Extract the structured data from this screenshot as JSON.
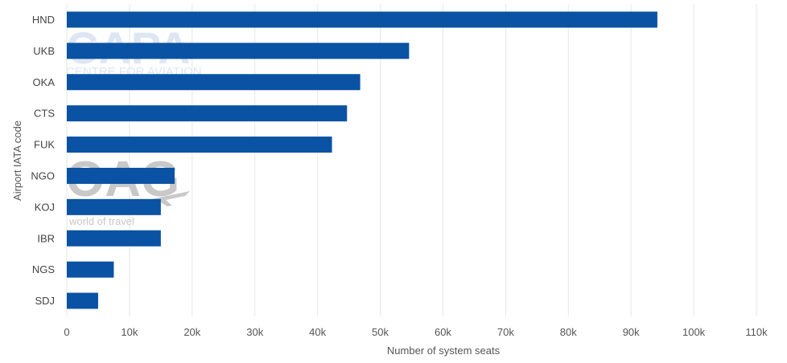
{
  "chart_data": {
    "type": "bar",
    "orientation": "horizontal",
    "categories": [
      "HND",
      "UKB",
      "OKA",
      "CTS",
      "FUK",
      "NGO",
      "KOJ",
      "IBR",
      "NGS",
      "SDJ"
    ],
    "values": [
      94200,
      54600,
      46800,
      44700,
      42300,
      17200,
      15000,
      15000,
      7500,
      5000
    ],
    "xlabel": "Number of system seats",
    "ylabel": "Airport IATA code",
    "xlim": [
      0,
      110000
    ],
    "xticks": [
      "0",
      "10k",
      "20k",
      "30k",
      "40k",
      "50k",
      "60k",
      "70k",
      "80k",
      "90k",
      "100k",
      "110k"
    ],
    "grid": "vertical",
    "bar_color": "#0a52a3",
    "grid_color": "#e6e6e6"
  },
  "watermarks": {
    "capa_logo": "CAPA",
    "capa_tagline": "CENTRE FOR AVIATION",
    "oag_logo": "OAG",
    "oag_tagline": "world of travel",
    "watermark_color": "#c8c8c8",
    "capa_color": "#dde6f2"
  }
}
